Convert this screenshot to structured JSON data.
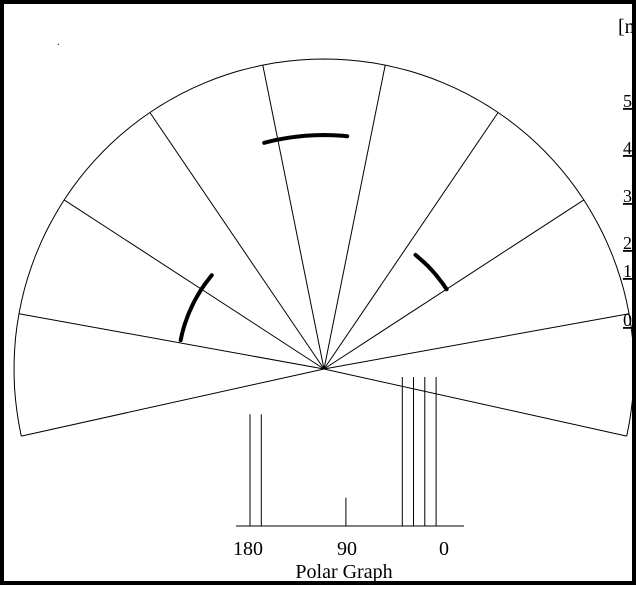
{
  "scale": {
    "unit_label": "[m]",
    "ticks": [
      "5",
      "4",
      "3",
      "2",
      "1",
      "0"
    ]
  },
  "polar": {
    "range_lines_deg": [
      0,
      20,
      40,
      60,
      80,
      100,
      120,
      140,
      160
    ],
    "detections": [
      {
        "angle_from_deg": 40,
        "angle_to_deg": 56,
        "range_m": 2.5
      },
      {
        "angle_from_deg": 85,
        "angle_to_deg": 103,
        "range_m": 4.0
      },
      {
        "angle_from_deg": 134,
        "angle_to_deg": 159,
        "range_m": 2.5
      }
    ]
  },
  "histogram": {
    "axis_labels": [
      "180",
      "90",
      "0"
    ],
    "title": "Polar Graph",
    "bar_angles_deg": [
      180,
      170,
      95,
      45,
      35,
      25,
      15
    ],
    "bar_levels": [
      0.75,
      0.75,
      0.19,
      1.0,
      1.0,
      1.0,
      1.0
    ]
  },
  "corner_mark": "."
}
